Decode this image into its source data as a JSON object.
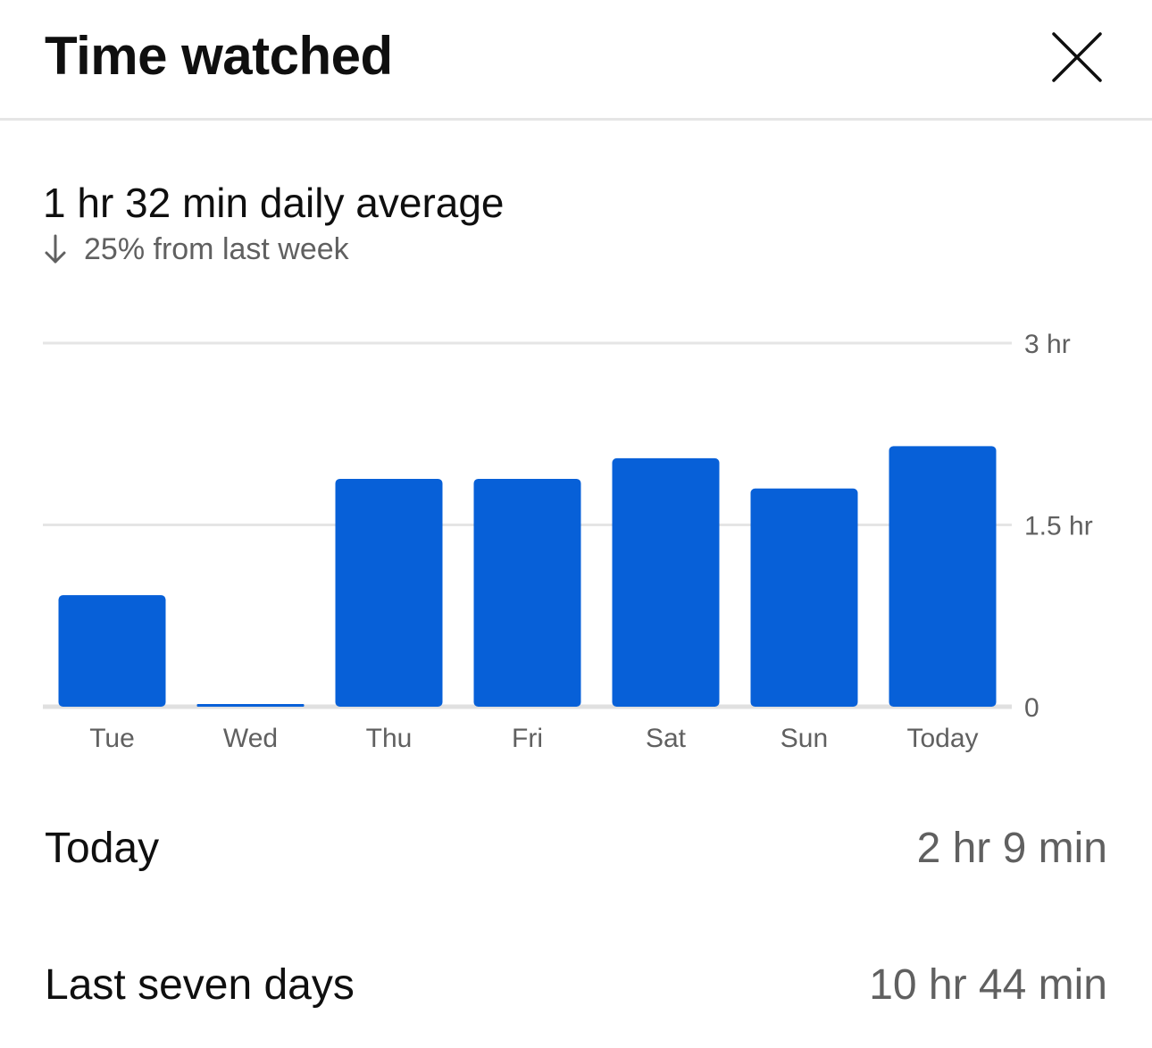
{
  "header": {
    "title": "Time watched",
    "close_icon": "close-icon"
  },
  "summary": {
    "daily_average": "1 hr 32 min daily average",
    "change_icon": "arrow-down-icon",
    "change_text": "25% from last week"
  },
  "chart_data": {
    "type": "bar",
    "categories": [
      "Tue",
      "Wed",
      "Thu",
      "Fri",
      "Sat",
      "Sun",
      "Today"
    ],
    "values": [
      0.92,
      0.02,
      1.88,
      1.88,
      2.05,
      1.8,
      2.15
    ],
    "ylim": [
      0,
      3
    ],
    "y_ticks": [
      {
        "value": 3,
        "label": "3 hr"
      },
      {
        "value": 1.5,
        "label": "1.5 hr"
      },
      {
        "value": 0,
        "label": "0"
      }
    ],
    "bar_color": "#0760d8",
    "grid": true
  },
  "stats": [
    {
      "label": "Today",
      "value": "2 hr 9 min"
    },
    {
      "label": "Last seven days",
      "value": "10 hr 44 min"
    }
  ]
}
